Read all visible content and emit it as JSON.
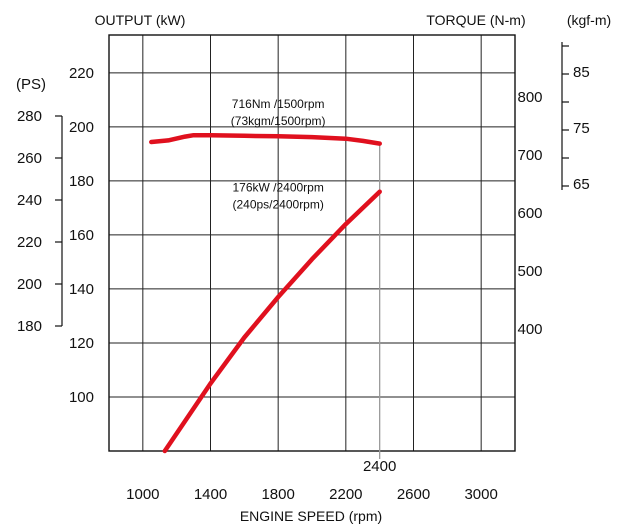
{
  "chart_data": {
    "type": "line",
    "title": "",
    "xlabel": "ENGINE SPEED (rpm)",
    "x_ticks": [
      1000,
      1400,
      1800,
      2200,
      2600,
      3000
    ],
    "x_range": [
      800,
      3200
    ],
    "x_marker": {
      "value": 2400,
      "label": "2400"
    },
    "grid": true,
    "axes": {
      "output_kw": {
        "label": "OUTPUT (kW)",
        "ticks": [
          100,
          120,
          140,
          160,
          180,
          200,
          220
        ],
        "range": [
          80,
          234
        ]
      },
      "output_ps": {
        "label": "(PS)",
        "ticks": [
          180,
          200,
          220,
          240,
          260,
          280
        ]
      },
      "torque_nm": {
        "label": "TORQUE (N-m)",
        "ticks": [
          400,
          500,
          600,
          700,
          800
        ]
      },
      "torque_kgfm": {
        "label": "(kgf-m)",
        "ticks": [
          65,
          75,
          85
        ]
      }
    },
    "series": [
      {
        "color": "#e0101e",
        "x": [
          1050,
          1150,
          1250,
          1300,
          1400,
          1600,
          1800,
          2000,
          2200,
          2300,
          2400
        ],
        "y": [
          194.4,
          195.0,
          196.4,
          196.9,
          196.9,
          196.7,
          196.5,
          196.2,
          195.6,
          194.8,
          193.8
        ]
      },
      {
        "color": "#e0101e",
        "x": [
          1130,
          1400,
          1600,
          1800,
          2000,
          2200,
          2400
        ],
        "y": [
          80.0,
          105.0,
          122.0,
          137.0,
          151.0,
          164.0,
          176.0
        ]
      }
    ],
    "annotations": [
      {
        "lines": [
          "716Nm /1500rpm",
          "(73kgm/1500rpm)"
        ],
        "x": 1800,
        "y": 207
      },
      {
        "lines": [
          "176kW /2400rpm",
          "(240ps/2400rpm)"
        ],
        "x": 1800,
        "y": 176
      }
    ]
  }
}
